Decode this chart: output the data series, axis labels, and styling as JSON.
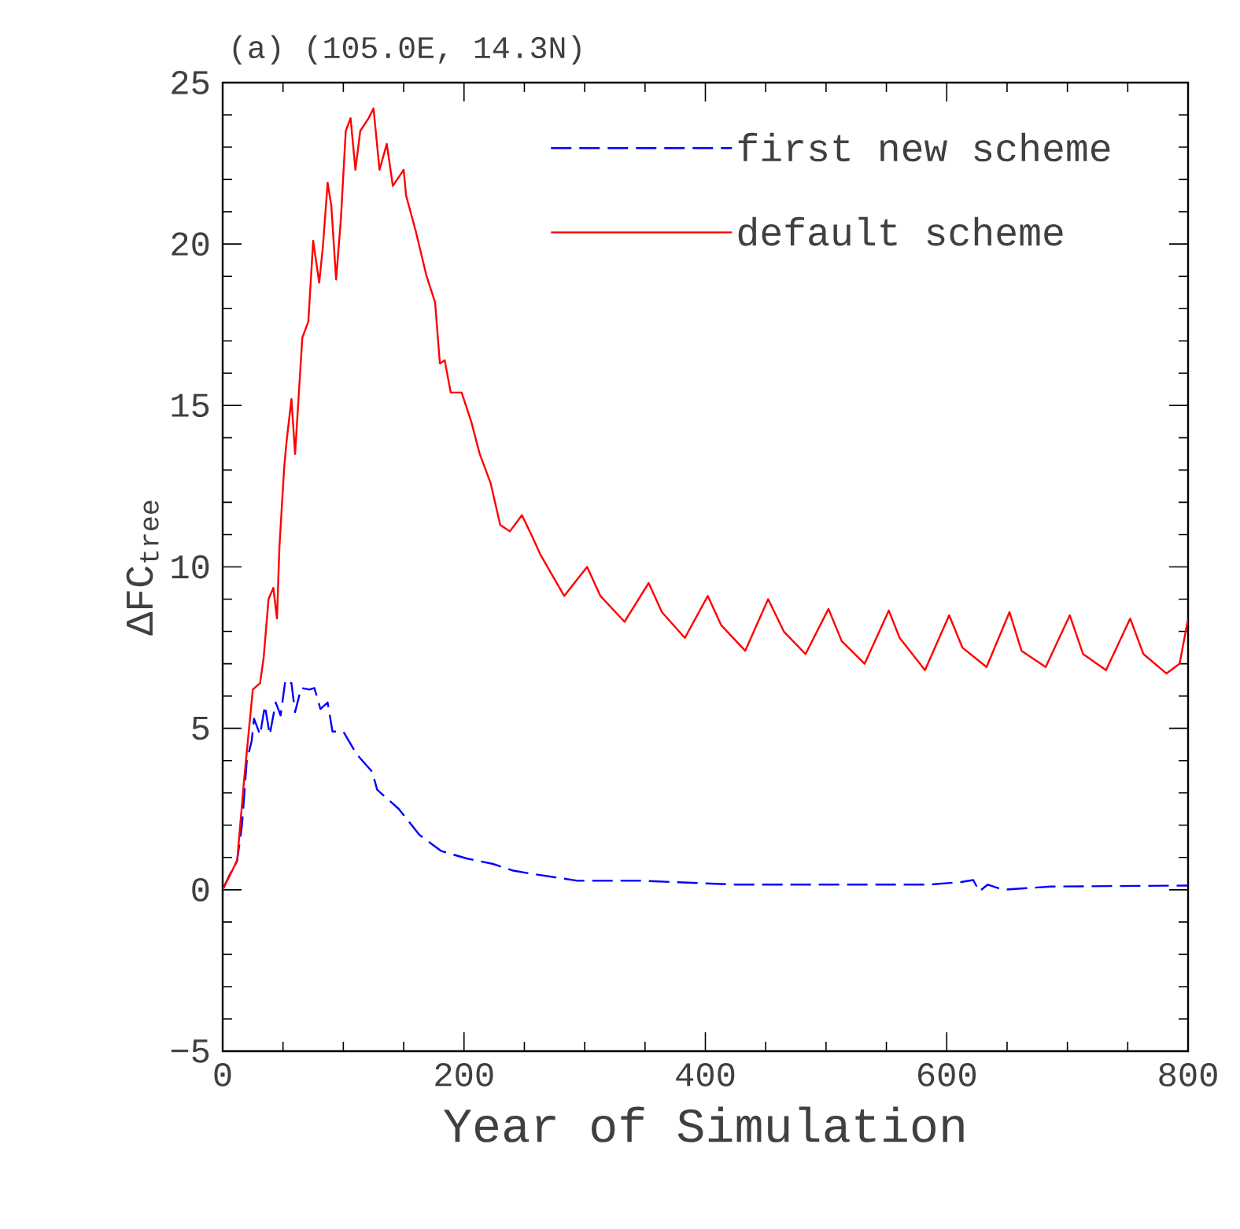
{
  "chart_data": {
    "type": "line",
    "title": "(a) (105.0E, 14.3N)",
    "xlabel": "Year of Simulation",
    "ylabel": "ΔFC$_{tree}$",
    "xlim": [
      0,
      800
    ],
    "ylim": [
      -5,
      25
    ],
    "xticks": [
      0,
      200,
      400,
      600,
      800
    ],
    "yticks": [
      {
        "value": -5,
        "label": "−5"
      },
      0,
      5,
      10,
      15,
      20,
      25
    ],
    "legend": "top right",
    "marker": "none",
    "series": [
      {
        "name": "first new scheme",
        "color": "#0000ff",
        "line_style": "dashed",
        "x": [
          0,
          5,
          12,
          16,
          20,
          24,
          26,
          31,
          35,
          39,
          44,
          48,
          52,
          57,
          60,
          65,
          72,
          76,
          81,
          87,
          91,
          100,
          111,
          124,
          128,
          146,
          163,
          181,
          202,
          224,
          240,
          255,
          294,
          346,
          425,
          512,
          586,
          612,
          622,
          627,
          634,
          647,
          686,
          800
        ],
        "values": [
          0,
          0.4,
          0.9,
          2.0,
          4.0,
          4.6,
          5.3,
          4.8,
          5.7,
          4.8,
          5.8,
          5.4,
          6.5,
          6.4,
          5.5,
          6.25,
          6.2,
          6.25,
          5.6,
          5.8,
          4.9,
          4.9,
          4.2,
          3.65,
          3.1,
          2.5,
          1.7,
          1.2,
          0.97,
          0.8,
          0.6,
          0.5,
          0.28,
          0.28,
          0.16,
          0.16,
          0.16,
          0.24,
          0.3,
          -0.05,
          0.16,
          0.0,
          0.1,
          0.13
        ]
      },
      {
        "name": "default scheme",
        "color": "#ff0000",
        "line_style": "solid",
        "x": [
          0,
          12,
          18,
          25,
          31,
          34,
          38,
          42,
          45,
          47,
          51,
          53,
          57,
          60,
          66,
          71,
          75,
          80,
          83,
          87,
          90,
          94,
          98,
          102,
          106,
          110,
          114,
          121,
          125,
          130,
          136,
          141,
          150,
          152,
          160,
          169,
          176,
          180,
          184,
          189,
          198,
          206,
          213,
          222,
          230,
          238,
          248,
          257,
          263,
          283,
          302,
          313,
          333,
          353,
          364,
          383,
          402,
          413,
          433,
          452,
          465,
          483,
          502,
          513,
          532,
          552,
          561,
          582,
          602,
          613,
          633,
          652,
          662,
          682,
          702,
          713,
          732,
          752,
          763,
          782,
          793,
          800
        ],
        "values": [
          0,
          0.9,
          3.5,
          6.2,
          6.4,
          7.2,
          9.0,
          9.35,
          8.4,
          10.6,
          13.1,
          13.9,
          15.2,
          13.5,
          17.1,
          17.6,
          20.1,
          18.8,
          19.9,
          21.9,
          21.2,
          18.9,
          20.8,
          23.5,
          23.9,
          22.3,
          23.5,
          23.9,
          24.2,
          22.3,
          23.1,
          21.8,
          22.3,
          21.5,
          20.4,
          19.0,
          18.2,
          16.3,
          16.4,
          15.4,
          15.4,
          14.5,
          13.5,
          12.6,
          11.3,
          11.1,
          11.6,
          10.9,
          10.4,
          9.1,
          10.0,
          9.1,
          8.3,
          9.5,
          8.6,
          7.8,
          9.1,
          8.2,
          7.4,
          9.0,
          8.0,
          7.3,
          8.7,
          7.7,
          7.0,
          8.65,
          7.8,
          6.8,
          8.5,
          7.5,
          6.9,
          8.6,
          7.4,
          6.9,
          8.5,
          7.3,
          6.8,
          8.4,
          7.3,
          6.7,
          7.0,
          8.4
        ]
      }
    ]
  }
}
